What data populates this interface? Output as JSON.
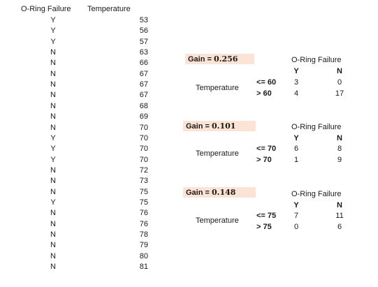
{
  "table": {
    "header_oring": "O-Ring Failure",
    "header_temperature": "Temperature",
    "rows": [
      {
        "oring": "Y",
        "temp": "53"
      },
      {
        "oring": "Y",
        "temp": "56"
      },
      {
        "oring": "Y",
        "temp": "57"
      },
      {
        "oring": "N",
        "temp": "63"
      },
      {
        "oring": "N",
        "temp": "66"
      },
      {
        "oring": "N",
        "temp": "67"
      },
      {
        "oring": "N",
        "temp": "67"
      },
      {
        "oring": "N",
        "temp": "67"
      },
      {
        "oring": "N",
        "temp": "68"
      },
      {
        "oring": "N",
        "temp": "69"
      },
      {
        "oring": "N",
        "temp": "70"
      },
      {
        "oring": "Y",
        "temp": "70"
      },
      {
        "oring": "Y",
        "temp": "70"
      },
      {
        "oring": "Y",
        "temp": "70"
      },
      {
        "oring": "N",
        "temp": "72"
      },
      {
        "oring": "N",
        "temp": "73"
      },
      {
        "oring": "N",
        "temp": "75"
      },
      {
        "oring": "Y",
        "temp": "75"
      },
      {
        "oring": "N",
        "temp": "76"
      },
      {
        "oring": "N",
        "temp": "76"
      },
      {
        "oring": "N",
        "temp": "78"
      },
      {
        "oring": "N",
        "temp": "79"
      },
      {
        "oring": "N",
        "temp": "80"
      },
      {
        "oring": "N",
        "temp": "81"
      }
    ]
  },
  "splits": [
    {
      "gain_label": "Gain = ",
      "gain_value": "0.256",
      "attribute": "Temperature",
      "title": "O-Ring Failure",
      "col_y": "Y",
      "col_n": "N",
      "row1_label": "<= 60",
      "row1_y": "3",
      "row1_n": "0",
      "row2_label": "> 60",
      "row2_y": "4",
      "row2_n": "17"
    },
    {
      "gain_label": "Gain = ",
      "gain_value": "0.101",
      "attribute": "Temperature",
      "title": "O-Ring Failure",
      "col_y": "Y",
      "col_n": "N",
      "row1_label": "<= 70",
      "row1_y": "6",
      "row1_n": "8",
      "row2_label": "> 70",
      "row2_y": "1",
      "row2_n": "9"
    },
    {
      "gain_label": "Gain = ",
      "gain_value": "0.148",
      "attribute": "Temperature",
      "title": "O-Ring Failure",
      "col_y": "Y",
      "col_n": "N",
      "row1_label": "<= 75",
      "row1_y": "7",
      "row1_n": "11",
      "row2_label": "> 75",
      "row2_y": "0",
      "row2_n": "6"
    }
  ]
}
